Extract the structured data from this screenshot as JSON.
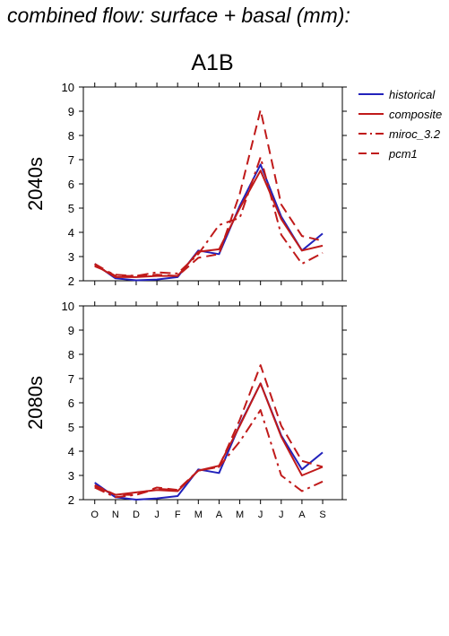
{
  "page_title": "combined flow: surface + basal (mm):",
  "plot_title": "A1B",
  "colors": {
    "historical": "#2222bb",
    "composite": "#c01a1a",
    "miroc_3.2": "#c01a1a",
    "pcm1": "#c01a1a"
  },
  "chart_data": [
    {
      "type": "line",
      "panel": "2040s",
      "ylabel": "2040s",
      "ylim": [
        2,
        10
      ],
      "yticks": [
        2,
        3,
        4,
        5,
        6,
        7,
        8,
        9,
        10
      ],
      "categories": [
        "O",
        "N",
        "D",
        "J",
        "F",
        "M",
        "A",
        "M",
        "J",
        "J",
        "A",
        "S"
      ],
      "grid": false,
      "legend": "top-right",
      "series": [
        {
          "name": "historical",
          "style": "solid",
          "values": [
            2.7,
            2.1,
            2.02,
            2.05,
            2.15,
            3.25,
            3.1,
            5.1,
            6.8,
            4.65,
            3.25,
            3.95
          ]
        },
        {
          "name": "composite",
          "style": "solid",
          "values": [
            2.65,
            2.15,
            2.15,
            2.2,
            2.2,
            3.2,
            3.3,
            5.0,
            6.55,
            4.55,
            3.25,
            3.45
          ]
        },
        {
          "name": "miroc_3.2",
          "style": "dashdot",
          "values": [
            2.6,
            2.25,
            2.2,
            2.35,
            2.3,
            3.1,
            4.3,
            4.6,
            7.1,
            3.9,
            2.7,
            3.15
          ]
        },
        {
          "name": "pcm1",
          "style": "dashed",
          "values": [
            2.7,
            2.2,
            2.2,
            2.25,
            2.2,
            2.95,
            3.1,
            5.6,
            9.05,
            5.15,
            3.85,
            3.65
          ]
        }
      ]
    },
    {
      "type": "line",
      "panel": "2080s",
      "ylabel": "2080s",
      "ylim": [
        2,
        10
      ],
      "yticks": [
        2,
        3,
        4,
        5,
        6,
        7,
        8,
        9,
        10
      ],
      "categories": [
        "O",
        "N",
        "D",
        "J",
        "F",
        "M",
        "A",
        "M",
        "J",
        "J",
        "A",
        "S"
      ],
      "grid": false,
      "series": [
        {
          "name": "historical",
          "style": "solid",
          "values": [
            2.7,
            2.1,
            2.0,
            2.05,
            2.15,
            3.25,
            3.1,
            5.1,
            6.8,
            4.65,
            3.25,
            3.95
          ]
        },
        {
          "name": "composite",
          "style": "solid",
          "values": [
            2.55,
            2.2,
            2.3,
            2.4,
            2.35,
            3.2,
            3.4,
            5.05,
            6.8,
            4.6,
            3.0,
            3.35
          ]
        },
        {
          "name": "miroc_3.2",
          "style": "dashdot",
          "values": [
            2.5,
            2.1,
            2.2,
            2.45,
            2.4,
            3.2,
            3.35,
            4.4,
            5.7,
            3.0,
            2.35,
            2.75
          ]
        },
        {
          "name": "pcm1",
          "style": "dashed",
          "values": [
            2.6,
            2.2,
            2.2,
            2.5,
            2.4,
            3.2,
            3.35,
            5.3,
            7.55,
            5.05,
            3.6,
            3.35
          ]
        }
      ]
    }
  ]
}
